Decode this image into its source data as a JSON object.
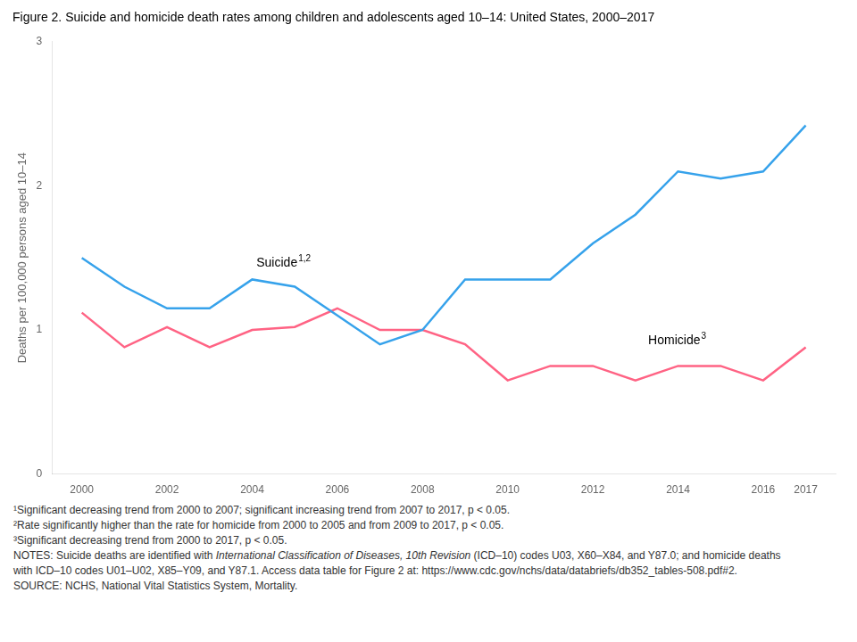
{
  "chart_data": {
    "type": "line",
    "title": "Figure 2. Suicide and homicide death rates among children and adolescents aged 10–14: United States, 2000–2017",
    "ylabel": "Deaths per 100,000 persons aged 10–14",
    "x": [
      2000,
      2001,
      2002,
      2003,
      2004,
      2005,
      2006,
      2007,
      2008,
      2009,
      2010,
      2011,
      2012,
      2013,
      2014,
      2015,
      2016,
      2017
    ],
    "series": [
      {
        "name": "Suicide",
        "values": [
          1.5,
          1.3,
          1.15,
          1.15,
          1.35,
          1.3,
          1.1,
          0.9,
          1.0,
          1.35,
          1.35,
          1.35,
          1.6,
          1.8,
          2.1,
          2.05,
          2.1,
          2.42
        ]
      },
      {
        "name": "Homicide",
        "values": [
          1.12,
          0.88,
          1.02,
          0.88,
          1.0,
          1.02,
          1.15,
          1.0,
          1.0,
          0.9,
          0.65,
          0.75,
          0.75,
          0.65,
          0.75,
          0.75,
          0.65,
          0.88
        ]
      }
    ],
    "xlim": [
      1999.3,
      2017.7
    ],
    "xticks": [
      2000,
      2002,
      2004,
      2006,
      2008,
      2010,
      2012,
      2014,
      2016,
      2017
    ],
    "ylim": [
      0,
      3
    ],
    "yticks": [
      0,
      1,
      2,
      3
    ],
    "grid": false,
    "annotations": [
      {
        "text": "Suicide",
        "sup": "1,2",
        "x": 2004.1,
        "y": 1.42
      },
      {
        "text": "Homicide",
        "sup": "3",
        "x": 2013.3,
        "y": 0.88
      }
    ],
    "footnotes": [
      "¹Significant decreasing trend from 2000 to 2007; significant increasing trend from 2007 to 2017, p < 0.05.",
      "²Rate significantly higher than the rate for homicide from 2000 to 2005 and from 2009 to 2017, p < 0.05.",
      "³Significant decreasing trend from 2000 to 2017, p < 0.05.",
      [
        {
          "text": "NOTES: Suicide deaths are identified with "
        },
        {
          "text": "International Classification of Diseases, 10th Revision",
          "style": "italic"
        },
        {
          "text": " (ICD–10) codes U03, X60–X84, and Y87.0; and homicide deaths"
        }
      ],
      "with ICD–10 codes U01–U02, X85–Y09, and Y87.1. Access data table for Figure 2 at: https://www.cdc.gov/nchs/data/databriefs/db352_tables-508.pdf#2.",
      "SOURCE: NCHS, National Vital Statistics System, Mortality."
    ]
  }
}
